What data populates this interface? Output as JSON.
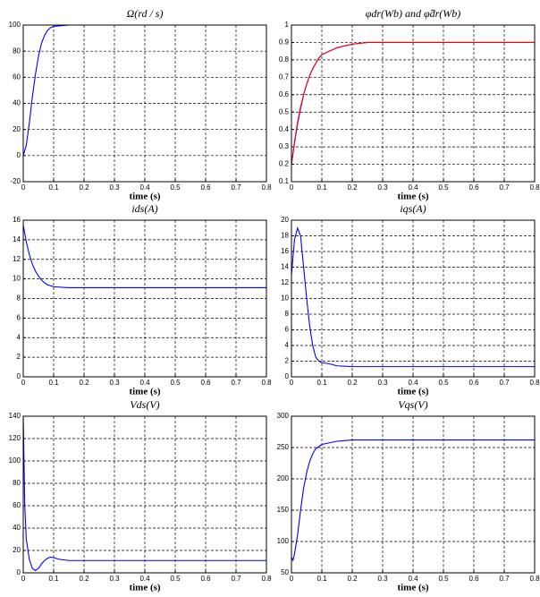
{
  "chart_data": [
    {
      "type": "line",
      "title": "Ω(rd / s)",
      "xlabel": "time (s)",
      "x": [
        0,
        0.01,
        0.02,
        0.03,
        0.04,
        0.05,
        0.06,
        0.07,
        0.08,
        0.09,
        0.1,
        0.15,
        0.2,
        0.3,
        0.4,
        0.5,
        0.6,
        0.7,
        0.8
      ],
      "series": [
        {
          "color": "#0000ff",
          "values": [
            0,
            8,
            25,
            45,
            62,
            76,
            86,
            92,
            96,
            98,
            99,
            100,
            100,
            100,
            100,
            100,
            100,
            100,
            100
          ]
        }
      ],
      "xlim": [
        0,
        0.8
      ],
      "xticks": [
        0,
        0.1,
        0.2,
        0.3,
        0.4,
        0.5,
        0.6,
        0.7,
        0.8
      ],
      "ylim": [
        -20,
        100
      ],
      "yticks": [
        -20,
        0,
        20,
        40,
        60,
        80,
        100
      ],
      "grid": true
    },
    {
      "type": "line",
      "title": "φdr(Wb) and φ̂dr(Wb)",
      "xlabel": "time (s)",
      "x": [
        0,
        0.01,
        0.02,
        0.03,
        0.04,
        0.05,
        0.06,
        0.07,
        0.08,
        0.09,
        0.1,
        0.15,
        0.2,
        0.25,
        0.3,
        0.4,
        0.5,
        0.6,
        0.7,
        0.8
      ],
      "series": [
        {
          "color": "#0000ff",
          "values": [
            0.2,
            0.32,
            0.43,
            0.52,
            0.6,
            0.66,
            0.71,
            0.75,
            0.78,
            0.81,
            0.83,
            0.87,
            0.89,
            0.9,
            0.9,
            0.9,
            0.9,
            0.9,
            0.9,
            0.9
          ]
        },
        {
          "color": "#ff0000",
          "values": [
            0.2,
            0.33,
            0.44,
            0.53,
            0.6,
            0.66,
            0.71,
            0.75,
            0.78,
            0.81,
            0.83,
            0.87,
            0.89,
            0.9,
            0.9,
            0.9,
            0.9,
            0.9,
            0.9,
            0.9
          ]
        }
      ],
      "xlim": [
        0,
        0.8
      ],
      "xticks": [
        0,
        0.1,
        0.2,
        0.3,
        0.4,
        0.5,
        0.6,
        0.7,
        0.8
      ],
      "ylim": [
        0.1,
        1
      ],
      "yticks": [
        0.1,
        0.2,
        0.3,
        0.4,
        0.5,
        0.6,
        0.7,
        0.8,
        0.9,
        1
      ],
      "grid": true
    },
    {
      "type": "line",
      "title": "ids(A)",
      "xlabel": "time (s)",
      "x": [
        0,
        0.01,
        0.02,
        0.03,
        0.04,
        0.05,
        0.06,
        0.07,
        0.08,
        0.09,
        0.1,
        0.15,
        0.2,
        0.3,
        0.4,
        0.5,
        0.6,
        0.7,
        0.8
      ],
      "series": [
        {
          "color": "#0000ff",
          "values": [
            15.5,
            13.8,
            12.5,
            11.5,
            10.8,
            10.3,
            9.9,
            9.6,
            9.4,
            9.3,
            9.2,
            9.1,
            9.1,
            9.1,
            9.1,
            9.1,
            9.1,
            9.1,
            9.1
          ]
        }
      ],
      "xlim": [
        0,
        0.8
      ],
      "xticks": [
        0,
        0.1,
        0.2,
        0.3,
        0.4,
        0.5,
        0.6,
        0.7,
        0.8
      ],
      "ylim": [
        0,
        16
      ],
      "yticks": [
        0,
        2,
        4,
        6,
        8,
        10,
        12,
        14,
        16
      ],
      "grid": true
    },
    {
      "type": "line",
      "title": "iqs(A)",
      "xlabel": "time (s)",
      "x": [
        0,
        0.01,
        0.02,
        0.03,
        0.04,
        0.05,
        0.06,
        0.07,
        0.08,
        0.09,
        0.1,
        0.12,
        0.15,
        0.2,
        0.3,
        0.4,
        0.5,
        0.6,
        0.7,
        0.8
      ],
      "series": [
        {
          "color": "#0000ff",
          "values": [
            13,
            17.5,
            19,
            18,
            14,
            10,
            6.5,
            4,
            2.5,
            2,
            1.8,
            1.7,
            1.4,
            1.3,
            1.3,
            1.3,
            1.3,
            1.3,
            1.3,
            1.3
          ]
        }
      ],
      "xlim": [
        0,
        0.8
      ],
      "xticks": [
        0,
        0.1,
        0.2,
        0.3,
        0.4,
        0.5,
        0.6,
        0.7,
        0.8
      ],
      "ylim": [
        0,
        20
      ],
      "yticks": [
        0,
        2,
        4,
        6,
        8,
        10,
        12,
        14,
        16,
        18,
        20
      ],
      "grid": true
    },
    {
      "type": "line",
      "title": "Vds(V)",
      "xlabel": "time (s)",
      "x": [
        0,
        0.005,
        0.01,
        0.02,
        0.03,
        0.04,
        0.05,
        0.06,
        0.07,
        0.08,
        0.09,
        0.1,
        0.12,
        0.15,
        0.2,
        0.3,
        0.4,
        0.5,
        0.6,
        0.7,
        0.8
      ],
      "series": [
        {
          "color": "#0000ff",
          "values": [
            140,
            60,
            30,
            12,
            4,
            2,
            4,
            8,
            11,
            13,
            14,
            13.5,
            12,
            11,
            11,
            11,
            11,
            11,
            11,
            11,
            11
          ]
        }
      ],
      "xlim": [
        0,
        0.8
      ],
      "xticks": [
        0,
        0.1,
        0.2,
        0.3,
        0.4,
        0.5,
        0.6,
        0.7,
        0.8
      ],
      "ylim": [
        0,
        140
      ],
      "yticks": [
        0,
        20,
        40,
        60,
        80,
        100,
        120,
        140
      ],
      "grid": true
    },
    {
      "type": "line",
      "title": "Vqs(V)",
      "xlabel": "time (s)",
      "x": [
        0,
        0.005,
        0.01,
        0.02,
        0.03,
        0.04,
        0.05,
        0.06,
        0.07,
        0.08,
        0.1,
        0.15,
        0.2,
        0.3,
        0.4,
        0.5,
        0.6,
        0.7,
        0.8
      ],
      "series": [
        {
          "color": "#0000ff",
          "values": [
            75,
            70,
            80,
            110,
            150,
            185,
            210,
            228,
            240,
            248,
            255,
            260,
            262,
            262,
            262,
            262,
            262,
            262,
            262
          ]
        }
      ],
      "xlim": [
        0,
        0.8
      ],
      "xticks": [
        0,
        0.1,
        0.2,
        0.3,
        0.4,
        0.5,
        0.6,
        0.7,
        0.8
      ],
      "ylim": [
        50,
        300
      ],
      "yticks": [
        50,
        100,
        150,
        200,
        250,
        300
      ],
      "grid": true
    }
  ]
}
